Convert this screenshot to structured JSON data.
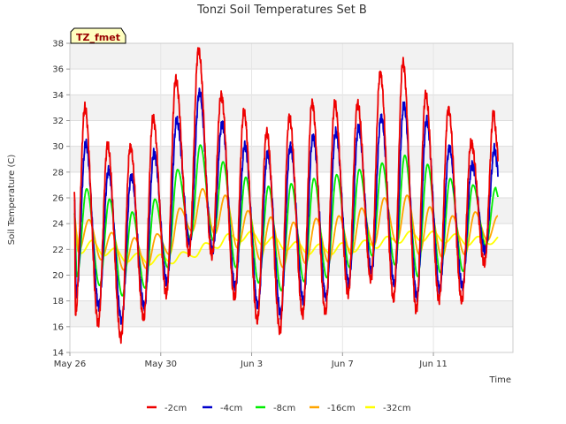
{
  "chart_data": {
    "type": "line",
    "title": "Tonzi Soil Temperatures Set B",
    "xlabel": "Time",
    "ylabel": "Soil Temperature (C)",
    "site_tag": "TZ_fmet",
    "ylim": [
      14,
      38
    ],
    "yticks": [
      14,
      16,
      18,
      20,
      22,
      24,
      26,
      28,
      30,
      32,
      34,
      36,
      38
    ],
    "xlim": [
      "2024-05-26",
      "2024-06-14T12:00"
    ],
    "xtick_labels": [
      "May 26",
      "May 30",
      "Jun 3",
      "Jun 7",
      "Jun 11"
    ],
    "grid": true,
    "background_bands": true,
    "legend_position": "bottom",
    "x_dates": [
      "May 26",
      "May 27",
      "May 28",
      "May 29",
      "May 30",
      "May 31",
      "Jun 1",
      "Jun 2",
      "Jun 3",
      "Jun 4",
      "Jun 5",
      "Jun 6",
      "Jun 7",
      "Jun 8",
      "Jun 9",
      "Jun 10",
      "Jun 11",
      "Jun 12",
      "Jun 13"
    ],
    "series": [
      {
        "name": "-2cm",
        "color": "#ee0000",
        "daily_max": [
          33.0,
          30.1,
          30.0,
          32.2,
          35.2,
          37.5,
          34.0,
          32.7,
          31.1,
          32.3,
          33.4,
          33.3,
          33.3,
          35.7,
          36.5,
          34.0,
          32.9,
          30.3,
          32.7
        ],
        "daily_min": [
          17.0,
          16.3,
          15.1,
          16.6,
          18.5,
          21.7,
          21.5,
          18.2,
          16.5,
          15.7,
          16.9,
          17.1,
          18.6,
          19.7,
          18.1,
          17.3,
          18.1,
          18.0,
          20.9
        ]
      },
      {
        "name": "-4cm",
        "color": "#0000cc",
        "daily_max": [
          30.2,
          28.1,
          27.7,
          29.5,
          32.0,
          34.2,
          31.8,
          30.1,
          29.4,
          30.0,
          30.8,
          31.1,
          31.4,
          32.3,
          33.2,
          32.0,
          29.9,
          28.6,
          29.9
        ],
        "daily_min": [
          18.4,
          17.6,
          16.5,
          17.5,
          19.4,
          22.5,
          21.9,
          19.0,
          17.6,
          17.0,
          18.0,
          18.2,
          19.4,
          20.3,
          19.3,
          18.3,
          18.9,
          19.1,
          21.8
        ]
      },
      {
        "name": "-8cm",
        "color": "#00ee00",
        "daily_max": [
          26.7,
          25.9,
          24.9,
          25.9,
          28.2,
          30.1,
          28.8,
          27.6,
          26.9,
          27.1,
          27.5,
          27.8,
          28.2,
          28.7,
          29.3,
          28.6,
          27.5,
          27.0,
          26.8
        ],
        "daily_min": [
          19.9,
          19.2,
          18.4,
          19.0,
          20.6,
          22.8,
          22.7,
          20.6,
          19.4,
          18.8,
          19.5,
          19.8,
          20.6,
          21.5,
          20.8,
          19.9,
          20.2,
          20.3,
          22.3
        ]
      },
      {
        "name": "-16cm",
        "color": "#ffa500",
        "daily_max": [
          24.3,
          23.3,
          22.9,
          23.2,
          25.2,
          26.7,
          26.2,
          25.0,
          24.5,
          24.1,
          24.4,
          24.6,
          25.2,
          26.0,
          26.2,
          25.3,
          24.6,
          24.9,
          24.6
        ],
        "daily_min": [
          21.8,
          21.2,
          20.4,
          20.5,
          21.6,
          23.4,
          23.2,
          22.1,
          21.2,
          20.6,
          20.9,
          21.0,
          21.6,
          22.3,
          22.5,
          21.6,
          21.4,
          21.6,
          22.7
        ]
      },
      {
        "name": "-32cm",
        "color": "#ffff00",
        "daily_max": [
          22.7,
          22.1,
          21.7,
          21.6,
          21.8,
          22.5,
          23.2,
          23.4,
          23.0,
          22.6,
          22.4,
          22.5,
          22.7,
          23.0,
          23.4,
          23.4,
          23.2,
          23.0,
          23.1
        ],
        "daily_min": [
          21.7,
          21.5,
          21.0,
          20.8,
          20.9,
          21.4,
          22.1,
          22.6,
          22.3,
          21.9,
          21.6,
          21.6,
          21.8,
          22.1,
          22.5,
          22.6,
          22.5,
          22.3,
          22.4
        ]
      }
    ]
  }
}
